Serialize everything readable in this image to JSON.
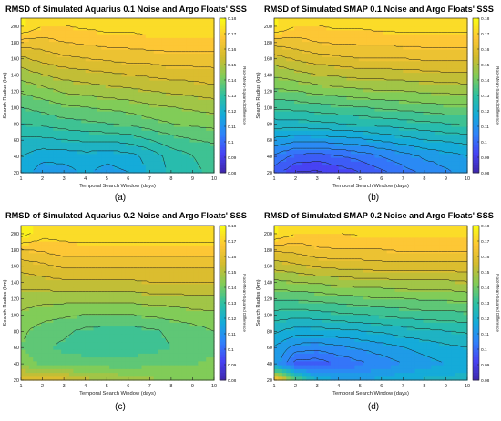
{
  "chart_data": [
    {
      "type": "heatmap",
      "title": "RMSD of Simulated Aquarius 0.1 Noise and Argo Floats' SSS",
      "xlabel": "Temporal Search Window (days)",
      "ylabel": "Search Radius (km)",
      "colorbar_label": "Root-Mean-Squared Difference",
      "caption": "(a)",
      "x_ticks": [
        1,
        2,
        3,
        4,
        5,
        6,
        7,
        8,
        9,
        10
      ],
      "y_ticks": [
        20,
        40,
        60,
        80,
        100,
        120,
        140,
        160,
        180,
        200
      ],
      "c_ticks": [
        0.08,
        0.09,
        0.1,
        0.11,
        0.12,
        0.13,
        0.14,
        0.15,
        0.16,
        0.17,
        0.18
      ],
      "xlim": [
        1,
        10
      ],
      "ylim": [
        20,
        210
      ],
      "clim": [
        0.08,
        0.18
      ],
      "x": [
        1,
        2,
        3,
        4,
        5,
        6,
        7,
        8,
        9,
        10
      ],
      "y": [
        20,
        40,
        60,
        80,
        100,
        120,
        140,
        160,
        180,
        200
      ],
      "z": [
        [
          0.118,
          0.112,
          0.113,
          0.116,
          0.113,
          0.115,
          0.121,
          0.126,
          0.129,
          0.131
        ],
        [
          0.12,
          0.117,
          0.117,
          0.118,
          0.117,
          0.118,
          0.122,
          0.127,
          0.13,
          0.132
        ],
        [
          0.124,
          0.124,
          0.125,
          0.126,
          0.126,
          0.127,
          0.13,
          0.133,
          0.135,
          0.136
        ],
        [
          0.13,
          0.131,
          0.133,
          0.134,
          0.135,
          0.136,
          0.138,
          0.14,
          0.141,
          0.142
        ],
        [
          0.135,
          0.137,
          0.139,
          0.14,
          0.141,
          0.142,
          0.144,
          0.145,
          0.146,
          0.147
        ],
        [
          0.141,
          0.143,
          0.146,
          0.147,
          0.148,
          0.149,
          0.15,
          0.151,
          0.152,
          0.153
        ],
        [
          0.147,
          0.15,
          0.152,
          0.153,
          0.154,
          0.155,
          0.156,
          0.157,
          0.157,
          0.158
        ],
        [
          0.154,
          0.157,
          0.159,
          0.16,
          0.161,
          0.162,
          0.162,
          0.163,
          0.163,
          0.163
        ],
        [
          0.163,
          0.163,
          0.165,
          0.166,
          0.167,
          0.167,
          0.168,
          0.168,
          0.168,
          0.168
        ],
        [
          0.176,
          0.17,
          0.17,
          0.171,
          0.172,
          0.172,
          0.173,
          0.173,
          0.173,
          0.173
        ]
      ],
      "color_stops": [
        "#3e26a8",
        "#4743f3",
        "#2f82fb",
        "#15abd9",
        "#2dc0a2",
        "#81cc58",
        "#d2bb2e",
        "#fdc735",
        "#f9fb14"
      ]
    },
    {
      "type": "heatmap",
      "title": "RMSD of Simulated SMAP 0.1 Noise and Argo Floats' SSS",
      "xlabel": "Temporal Search Window (days)",
      "ylabel": "Search Radius (km)",
      "colorbar_label": "Root-Mean-Squared Difference",
      "caption": "(b)",
      "x_ticks": [
        1,
        2,
        3,
        4,
        5,
        6,
        7,
        8,
        9,
        10
      ],
      "y_ticks": [
        20,
        40,
        60,
        80,
        100,
        120,
        140,
        160,
        180,
        200
      ],
      "c_ticks": [
        0.08,
        0.09,
        0.1,
        0.11,
        0.12,
        0.13,
        0.14,
        0.15,
        0.16,
        0.17,
        0.18
      ],
      "xlim": [
        1,
        10
      ],
      "ylim": [
        20,
        210
      ],
      "clim": [
        0.08,
        0.18
      ],
      "x": [
        1,
        2,
        3,
        4,
        5,
        6,
        7,
        8,
        9,
        10
      ],
      "y": [
        20,
        40,
        60,
        80,
        100,
        120,
        140,
        160,
        180,
        200
      ],
      "z": [
        [
          0.098,
          0.09,
          0.089,
          0.092,
          0.095,
          0.099,
          0.103,
          0.106,
          0.109,
          0.112
        ],
        [
          0.104,
          0.099,
          0.098,
          0.1,
          0.102,
          0.105,
          0.108,
          0.111,
          0.113,
          0.115
        ],
        [
          0.114,
          0.112,
          0.112,
          0.113,
          0.114,
          0.116,
          0.118,
          0.12,
          0.121,
          0.122
        ],
        [
          0.123,
          0.123,
          0.124,
          0.125,
          0.126,
          0.127,
          0.128,
          0.129,
          0.13,
          0.131
        ],
        [
          0.131,
          0.132,
          0.133,
          0.134,
          0.135,
          0.136,
          0.137,
          0.138,
          0.139,
          0.139
        ],
        [
          0.139,
          0.14,
          0.142,
          0.143,
          0.144,
          0.145,
          0.145,
          0.146,
          0.146,
          0.147
        ],
        [
          0.146,
          0.148,
          0.15,
          0.151,
          0.152,
          0.152,
          0.153,
          0.153,
          0.154,
          0.154
        ],
        [
          0.153,
          0.156,
          0.158,
          0.159,
          0.16,
          0.16,
          0.16,
          0.161,
          0.161,
          0.161
        ],
        [
          0.162,
          0.163,
          0.165,
          0.166,
          0.166,
          0.166,
          0.167,
          0.167,
          0.167,
          0.167
        ],
        [
          0.176,
          0.17,
          0.17,
          0.171,
          0.171,
          0.172,
          0.172,
          0.172,
          0.172,
          0.172
        ]
      ],
      "color_stops": [
        "#3e26a8",
        "#4743f3",
        "#2f82fb",
        "#15abd9",
        "#2dc0a2",
        "#81cc58",
        "#d2bb2e",
        "#fdc735",
        "#f9fb14"
      ]
    },
    {
      "type": "heatmap",
      "title": "RMSD of Simulated Aquarius 0.2 Noise and Argo Floats' SSS",
      "xlabel": "Temporal Search Window (days)",
      "ylabel": "Search Radius (km)",
      "colorbar_label": "Root-Mean-Squared Difference",
      "caption": "(c)",
      "x_ticks": [
        1,
        2,
        3,
        4,
        5,
        6,
        7,
        8,
        9,
        10
      ],
      "y_ticks": [
        20,
        40,
        60,
        80,
        100,
        120,
        140,
        160,
        180,
        200
      ],
      "c_ticks": [
        0.08,
        0.09,
        0.1,
        0.11,
        0.12,
        0.13,
        0.14,
        0.15,
        0.16,
        0.17,
        0.18
      ],
      "xlim": [
        1,
        10
      ],
      "ylim": [
        20,
        210
      ],
      "clim": [
        0.08,
        0.18
      ],
      "x": [
        1,
        2,
        3,
        4,
        5,
        6,
        7,
        8,
        9,
        10
      ],
      "y": [
        20,
        40,
        60,
        80,
        100,
        120,
        140,
        160,
        180,
        200
      ],
      "z": [
        [
          0.162,
          0.16,
          0.158,
          0.152,
          0.15,
          0.148,
          0.146,
          0.145,
          0.145,
          0.145
        ],
        [
          0.143,
          0.139,
          0.138,
          0.138,
          0.138,
          0.138,
          0.139,
          0.14,
          0.14,
          0.141
        ],
        [
          0.14,
          0.136,
          0.134,
          0.132,
          0.131,
          0.131,
          0.133,
          0.135,
          0.137,
          0.139
        ],
        [
          0.141,
          0.138,
          0.136,
          0.134,
          0.133,
          0.133,
          0.134,
          0.136,
          0.138,
          0.14
        ],
        [
          0.144,
          0.142,
          0.141,
          0.14,
          0.14,
          0.14,
          0.141,
          0.142,
          0.143,
          0.144
        ],
        [
          0.148,
          0.147,
          0.147,
          0.147,
          0.147,
          0.147,
          0.148,
          0.148,
          0.149,
          0.149
        ],
        [
          0.152,
          0.153,
          0.154,
          0.154,
          0.154,
          0.154,
          0.155,
          0.155,
          0.155,
          0.155
        ],
        [
          0.157,
          0.159,
          0.161,
          0.161,
          0.161,
          0.161,
          0.161,
          0.161,
          0.161,
          0.161
        ],
        [
          0.165,
          0.166,
          0.168,
          0.168,
          0.168,
          0.168,
          0.168,
          0.168,
          0.168,
          0.168
        ],
        [
          0.178,
          0.172,
          0.172,
          0.173,
          0.173,
          0.173,
          0.173,
          0.173,
          0.173,
          0.173
        ]
      ],
      "color_stops": [
        "#3e26a8",
        "#4743f3",
        "#2f82fb",
        "#15abd9",
        "#2dc0a2",
        "#81cc58",
        "#d2bb2e",
        "#fdc735",
        "#f9fb14"
      ]
    },
    {
      "type": "heatmap",
      "title": "RMSD of Simulated SMAP 0.2 Noise and Argo Floats' SSS",
      "xlabel": "Temporal Search Window (days)",
      "ylabel": "Search Radius (km)",
      "colorbar_label": "Root-Mean-Squared Difference",
      "caption": "(d)",
      "x_ticks": [
        1,
        2,
        3,
        4,
        5,
        6,
        7,
        8,
        9,
        10
      ],
      "y_ticks": [
        20,
        40,
        60,
        80,
        100,
        120,
        140,
        160,
        180,
        200
      ],
      "c_ticks": [
        0.08,
        0.09,
        0.1,
        0.11,
        0.12,
        0.13,
        0.14,
        0.15,
        0.16,
        0.17,
        0.18
      ],
      "xlim": [
        1,
        10
      ],
      "ylim": [
        20,
        210
      ],
      "clim": [
        0.08,
        0.18
      ],
      "x": [
        1,
        2,
        3,
        4,
        5,
        6,
        7,
        8,
        9,
        10
      ],
      "y": [
        20,
        40,
        60,
        80,
        100,
        120,
        140,
        160,
        180,
        200
      ],
      "z": [
        [
          0.17,
          0.14,
          0.12,
          0.115,
          0.115,
          0.117,
          0.119,
          0.121,
          0.122,
          0.123
        ],
        [
          0.114,
          0.098,
          0.097,
          0.101,
          0.104,
          0.107,
          0.11,
          0.113,
          0.115,
          0.117
        ],
        [
          0.115,
          0.108,
          0.107,
          0.109,
          0.111,
          0.113,
          0.115,
          0.117,
          0.119,
          0.12
        ],
        [
          0.121,
          0.118,
          0.118,
          0.119,
          0.12,
          0.121,
          0.123,
          0.124,
          0.125,
          0.126
        ],
        [
          0.128,
          0.127,
          0.128,
          0.129,
          0.13,
          0.131,
          0.132,
          0.133,
          0.133,
          0.134
        ],
        [
          0.136,
          0.136,
          0.137,
          0.138,
          0.139,
          0.14,
          0.14,
          0.141,
          0.141,
          0.142
        ],
        [
          0.144,
          0.145,
          0.146,
          0.147,
          0.148,
          0.148,
          0.149,
          0.149,
          0.149,
          0.15
        ],
        [
          0.152,
          0.154,
          0.156,
          0.157,
          0.157,
          0.158,
          0.158,
          0.158,
          0.158,
          0.158
        ],
        [
          0.161,
          0.162,
          0.164,
          0.165,
          0.165,
          0.165,
          0.166,
          0.166,
          0.166,
          0.166
        ],
        [
          0.176,
          0.17,
          0.17,
          0.17,
          0.171,
          0.171,
          0.171,
          0.171,
          0.171,
          0.171
        ]
      ],
      "color_stops": [
        "#3e26a8",
        "#4743f3",
        "#2f82fb",
        "#15abd9",
        "#2dc0a2",
        "#81cc58",
        "#d2bb2e",
        "#fdc735",
        "#f9fb14"
      ]
    }
  ]
}
